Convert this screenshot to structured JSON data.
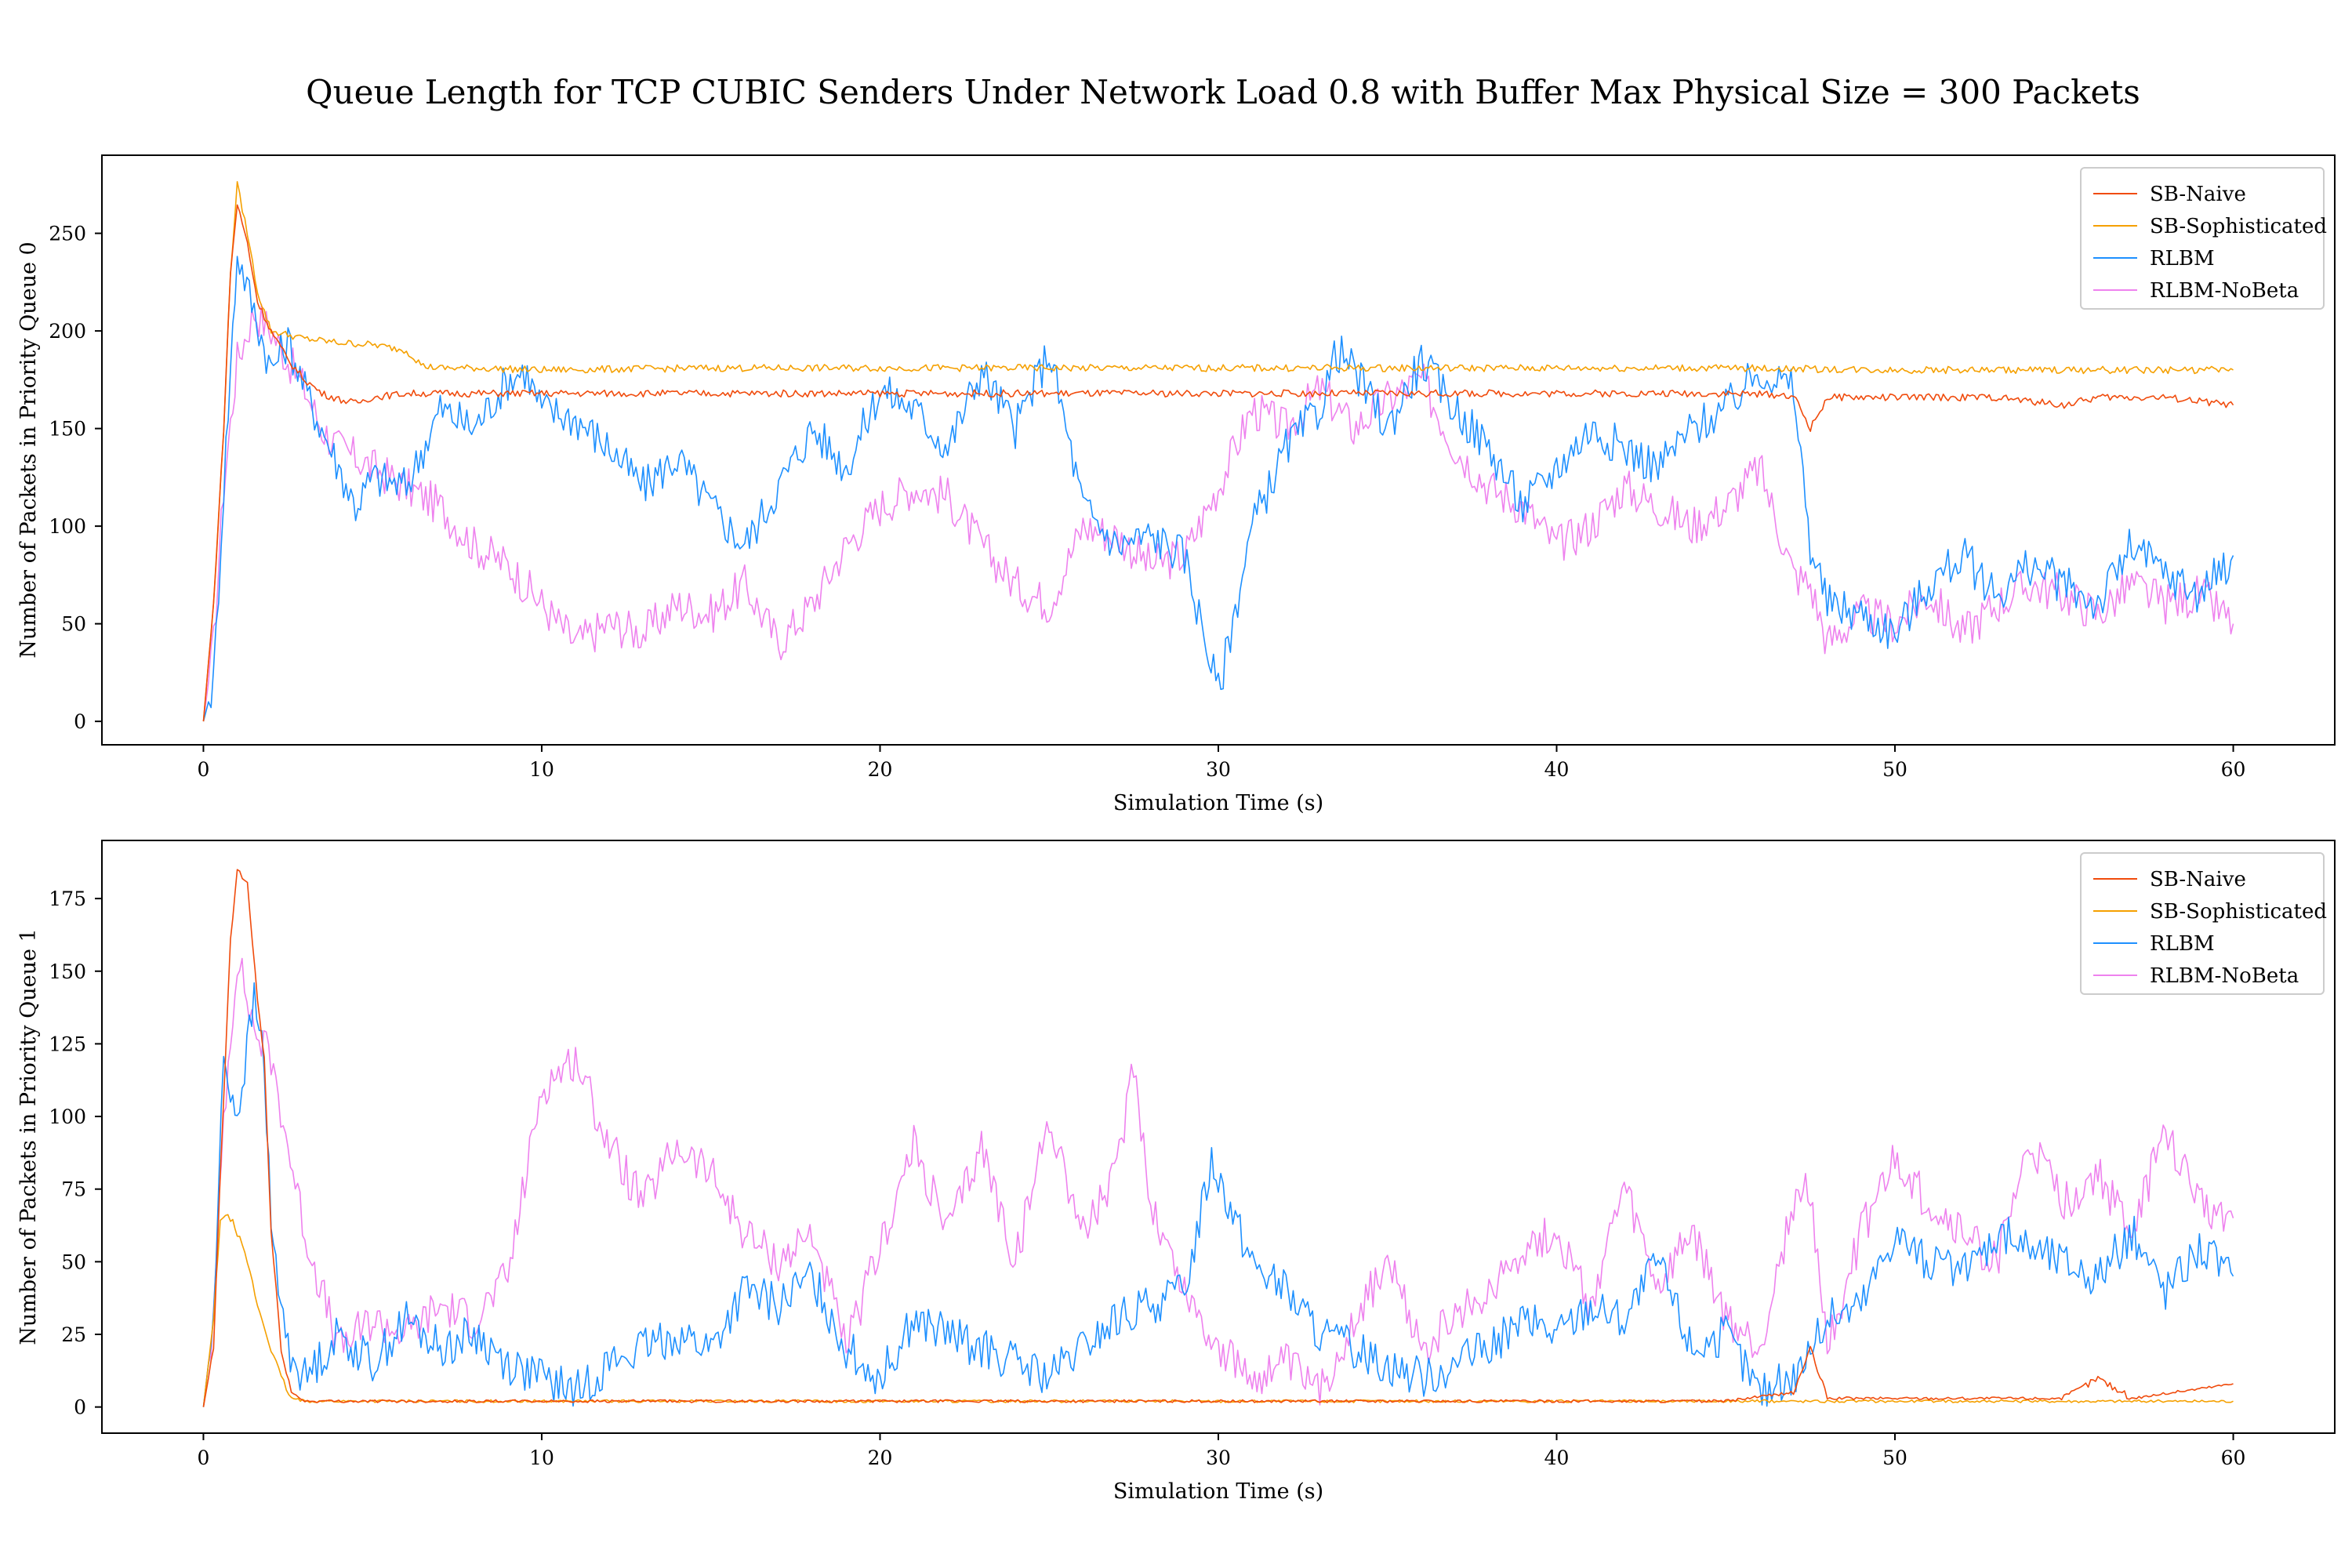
{
  "figure_title": "Queue Length for TCP CUBIC Senders Under Network Load 0.8 with Buffer Max Physical Size = 300 Packets",
  "colors": {
    "SB-Naive": "#f04b0c",
    "SB-Sophisticated": "#f5a000",
    "RLBM": "#1e90ff",
    "RLBM-NoBeta": "#ee82ee"
  },
  "chart_data": [
    {
      "type": "line",
      "title": "",
      "xlabel": "Simulation Time (s)",
      "ylabel": "Number of Packets in Priority Queue 0",
      "xlim": [
        -3,
        63
      ],
      "ylim": [
        -12,
        290
      ],
      "xticks": [
        0,
        10,
        20,
        30,
        40,
        50,
        60
      ],
      "yticks": [
        0,
        50,
        100,
        150,
        200,
        250
      ],
      "legend": "top-right",
      "grid": false,
      "series": [
        {
          "name": "SB-Naive",
          "x": [
            0,
            0.3,
            0.6,
            0.8,
            1.0,
            1.3,
            1.6,
            2.0,
            2.5,
            3.0,
            3.5,
            4.0,
            4.5,
            5.0,
            6.0,
            8.0,
            10.0,
            15.0,
            20.0,
            25.0,
            30.0,
            35.0,
            40.0,
            45.0,
            47.0,
            47.5,
            48.0,
            50.0,
            53.0,
            55.0,
            56.0,
            58.0,
            60.0
          ],
          "y": [
            0,
            60,
            150,
            230,
            265,
            245,
            215,
            200,
            185,
            175,
            168,
            165,
            163,
            166,
            168,
            168,
            168,
            168,
            168,
            168,
            168,
            168,
            168,
            168,
            167,
            150,
            166,
            166,
            166,
            162,
            166,
            166,
            162
          ]
        },
        {
          "name": "SB-Sophisticated",
          "x": [
            0,
            0.3,
            0.6,
            0.8,
            1.0,
            1.3,
            1.6,
            2.0,
            3.0,
            4.0,
            5.0,
            6.0,
            6.5,
            7.0,
            8.0,
            10.0,
            15.0,
            20.0,
            25.0,
            30.0,
            35.0,
            40.0,
            45.0,
            50.0,
            55.0,
            60.0
          ],
          "y": [
            0,
            60,
            150,
            230,
            275,
            250,
            220,
            200,
            196,
            194,
            193,
            190,
            182,
            181,
            181,
            180,
            181,
            181,
            181,
            181,
            181,
            181,
            181,
            180,
            180,
            180
          ]
        },
        {
          "name": "RLBM",
          "x": [
            0,
            0.3,
            0.6,
            1.0,
            1.5,
            2.0,
            2.5,
            3.0,
            3.5,
            4.0,
            4.5,
            5.0,
            6.0,
            6.5,
            7.0,
            8.0,
            9.0,
            9.5,
            10.0,
            11.0,
            12.0,
            13.0,
            14.0,
            15.0,
            16.0,
            17.0,
            18.0,
            19.0,
            20.0,
            21.0,
            22.0,
            23.0,
            24.0,
            25.0,
            26.0,
            27.0,
            28.0,
            29.0,
            30.0,
            31.0,
            32.0,
            33.0,
            33.5,
            34.0,
            35.0,
            36.0,
            37.0,
            38.0,
            39.0,
            40.0,
            41.0,
            42.0,
            43.0,
            44.0,
            45.0,
            46.0,
            47.0,
            47.5,
            48.0,
            49.0,
            50.0,
            51.0,
            52.0,
            53.0,
            54.0,
            55.0,
            56.0,
            57.0,
            58.0,
            59.0,
            60.0
          ],
          "y": [
            0,
            20,
            120,
            240,
            210,
            180,
            195,
            170,
            150,
            130,
            110,
            125,
            120,
            140,
            160,
            150,
            175,
            180,
            160,
            155,
            140,
            120,
            135,
            110,
            90,
            120,
            150,
            130,
            170,
            160,
            140,
            180,
            150,
            190,
            110,
            90,
            95,
            85,
            15,
            100,
            140,
            160,
            190,
            180,
            150,
            185,
            160,
            140,
            110,
            130,
            150,
            140,
            130,
            150,
            160,
            180,
            170,
            90,
            60,
            55,
            45,
            70,
            85,
            65,
            80,
            70,
            60,
            90,
            75,
            65,
            85
          ]
        },
        {
          "name": "RLBM-NoBeta",
          "x": [
            0,
            0.3,
            0.6,
            1.0,
            1.5,
            2.0,
            2.5,
            3.0,
            3.5,
            4.0,
            5.0,
            6.0,
            7.0,
            8.0,
            9.0,
            10.0,
            11.0,
            12.0,
            13.0,
            14.0,
            15.0,
            16.0,
            17.0,
            18.0,
            19.0,
            20.0,
            21.0,
            22.0,
            23.0,
            24.0,
            25.0,
            26.0,
            27.0,
            28.0,
            29.0,
            30.0,
            31.0,
            32.0,
            33.0,
            34.0,
            35.0,
            36.0,
            37.0,
            38.0,
            39.0,
            40.0,
            41.0,
            42.0,
            43.0,
            44.0,
            45.0,
            46.0,
            47.0,
            47.5,
            48.0,
            49.0,
            50.0,
            51.0,
            52.0,
            53.0,
            54.0,
            55.0,
            56.0,
            57.0,
            58.0,
            59.0,
            60.0
          ],
          "y": [
            0,
            40,
            120,
            185,
            210,
            200,
            185,
            170,
            150,
            140,
            130,
            120,
            110,
            90,
            80,
            60,
            40,
            50,
            45,
            60,
            55,
            70,
            40,
            60,
            90,
            110,
            120,
            115,
            90,
            70,
            60,
            100,
            95,
            80,
            85,
            120,
            160,
            150,
            170,
            150,
            165,
            175,
            140,
            120,
            110,
            90,
            100,
            120,
            110,
            100,
            110,
            130,
            75,
            70,
            40,
            55,
            50,
            65,
            45,
            60,
            70,
            65,
            55,
            70,
            60,
            65,
            50
          ]
        }
      ]
    },
    {
      "type": "line",
      "title": "",
      "xlabel": "Simulation Time (s)",
      "ylabel": "Number of Packets in Priority Queue 1",
      "xlim": [
        -3,
        63
      ],
      "ylim": [
        -9,
        195
      ],
      "xticks": [
        0,
        10,
        20,
        30,
        40,
        50,
        60
      ],
      "yticks": [
        0,
        25,
        50,
        75,
        100,
        125,
        150,
        175
      ],
      "legend": "top-right",
      "grid": false,
      "series": [
        {
          "name": "SB-Naive",
          "x": [
            0,
            0.3,
            0.5,
            0.8,
            1.0,
            1.3,
            1.6,
            1.8,
            2.0,
            2.3,
            2.6,
            3.0,
            5.0,
            10.0,
            15.0,
            20.0,
            25.0,
            30.0,
            35.0,
            40.0,
            45.0,
            47.0,
            47.5,
            48.0,
            50.0,
            55.0,
            56.0,
            57.0,
            60.0
          ],
          "y": [
            0,
            20,
            80,
            160,
            185,
            180,
            140,
            120,
            60,
            20,
            5,
            2,
            2,
            2,
            2,
            2,
            2,
            2,
            2,
            2,
            2,
            5,
            20,
            3,
            3,
            3,
            10,
            3,
            8
          ]
        },
        {
          "name": "SB-Sophisticated",
          "x": [
            0,
            0.3,
            0.5,
            0.8,
            1.0,
            1.3,
            1.6,
            2.0,
            2.3,
            2.6,
            3.0,
            5.0,
            10.0,
            15.0,
            20.0,
            25.0,
            30.0,
            35.0,
            40.0,
            45.0,
            50.0,
            55.0,
            60.0
          ],
          "y": [
            0,
            30,
            65,
            65,
            60,
            50,
            35,
            20,
            10,
            3,
            2,
            2,
            2,
            2,
            2,
            2,
            2,
            2,
            2,
            2,
            2,
            2,
            2
          ]
        },
        {
          "name": "RLBM",
          "x": [
            0,
            0.3,
            0.6,
            1.0,
            1.5,
            1.8,
            2.0,
            2.5,
            3.0,
            4.0,
            5.0,
            6.0,
            7.0,
            8.0,
            9.0,
            10.0,
            11.0,
            12.0,
            13.0,
            14.0,
            15.0,
            16.0,
            17.0,
            18.0,
            19.0,
            20.0,
            21.0,
            22.0,
            23.0,
            24.0,
            25.0,
            26.0,
            27.0,
            28.0,
            29.0,
            29.8,
            30.0,
            31.0,
            32.0,
            33.0,
            34.0,
            35.0,
            36.0,
            37.0,
            38.0,
            39.0,
            40.0,
            41.0,
            42.0,
            43.0,
            44.0,
            45.0,
            46.0,
            47.0,
            48.0,
            49.0,
            50.0,
            51.0,
            52.0,
            53.0,
            54.0,
            55.0,
            56.0,
            57.0,
            58.0,
            59.0,
            60.0
          ],
          "y": [
            0,
            30,
            120,
            100,
            140,
            120,
            60,
            20,
            10,
            25,
            15,
            30,
            20,
            25,
            15,
            10,
            5,
            15,
            20,
            25,
            20,
            40,
            35,
            45,
            20,
            10,
            30,
            25,
            20,
            15,
            10,
            20,
            30,
            35,
            40,
            85,
            80,
            50,
            40,
            25,
            20,
            15,
            10,
            15,
            20,
            30,
            25,
            35,
            30,
            50,
            20,
            25,
            5,
            10,
            30,
            35,
            60,
            50,
            45,
            60,
            55,
            50,
            45,
            60,
            40,
            55,
            45
          ]
        },
        {
          "name": "RLBM-NoBeta",
          "x": [
            0,
            0.3,
            0.6,
            1.0,
            1.5,
            2.0,
            2.5,
            3.0,
            4.0,
            5.0,
            6.0,
            7.0,
            8.0,
            9.0,
            10.0,
            11.0,
            12.0,
            13.0,
            14.0,
            15.0,
            16.0,
            17.0,
            18.0,
            19.0,
            20.0,
            21.0,
            22.0,
            23.0,
            24.0,
            25.0,
            26.0,
            27.0,
            27.5,
            28.0,
            29.0,
            30.0,
            31.0,
            32.0,
            33.0,
            34.0,
            35.0,
            36.0,
            37.0,
            38.0,
            39.0,
            40.0,
            41.0,
            42.0,
            43.0,
            44.0,
            45.0,
            46.0,
            47.0,
            47.5,
            48.0,
            49.0,
            50.0,
            51.0,
            52.0,
            53.0,
            54.0,
            55.0,
            56.0,
            57.0,
            58.0,
            59.0,
            60.0
          ],
          "y": [
            0,
            30,
            100,
            155,
            130,
            120,
            90,
            60,
            20,
            30,
            25,
            35,
            30,
            45,
            110,
            120,
            90,
            70,
            90,
            80,
            60,
            50,
            60,
            20,
            55,
            90,
            60,
            90,
            50,
            100,
            60,
            80,
            120,
            70,
            40,
            20,
            10,
            15,
            5,
            30,
            50,
            20,
            30,
            40,
            55,
            60,
            35,
            75,
            40,
            60,
            30,
            20,
            70,
            75,
            20,
            60,
            85,
            70,
            60,
            50,
            90,
            70,
            80,
            60,
            95,
            70,
            65
          ]
        }
      ]
    }
  ]
}
